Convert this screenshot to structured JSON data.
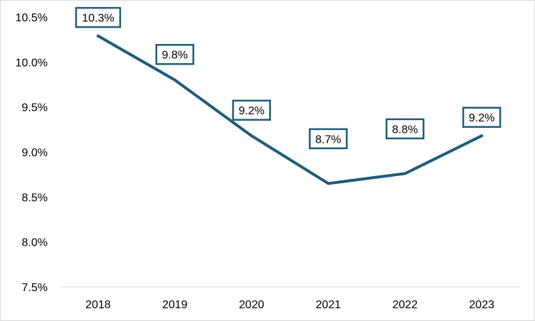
{
  "chart_data": {
    "type": "line",
    "title": "",
    "xlabel": "",
    "ylabel": "",
    "categories": [
      "2018",
      "2019",
      "2020",
      "2021",
      "2022",
      "2023"
    ],
    "series": [
      {
        "values": [
          10.29,
          9.8,
          9.18,
          8.65,
          8.76,
          9.18
        ],
        "data_labels": [
          "10.3%",
          "9.8%",
          "9.2%",
          "8.7%",
          "8.8%",
          "9.2%"
        ],
        "color": "#1f5c7a"
      }
    ],
    "ylim": [
      7.5,
      10.5
    ],
    "yticks": [
      7.5,
      8.0,
      8.5,
      9.0,
      9.5,
      10.0,
      10.5
    ],
    "ytick_labels": [
      "7.5%",
      "8.0%",
      "8.5%",
      "9.0%",
      "9.5%",
      "10.0%",
      "10.5%"
    ],
    "grid": false,
    "legend": "none"
  }
}
